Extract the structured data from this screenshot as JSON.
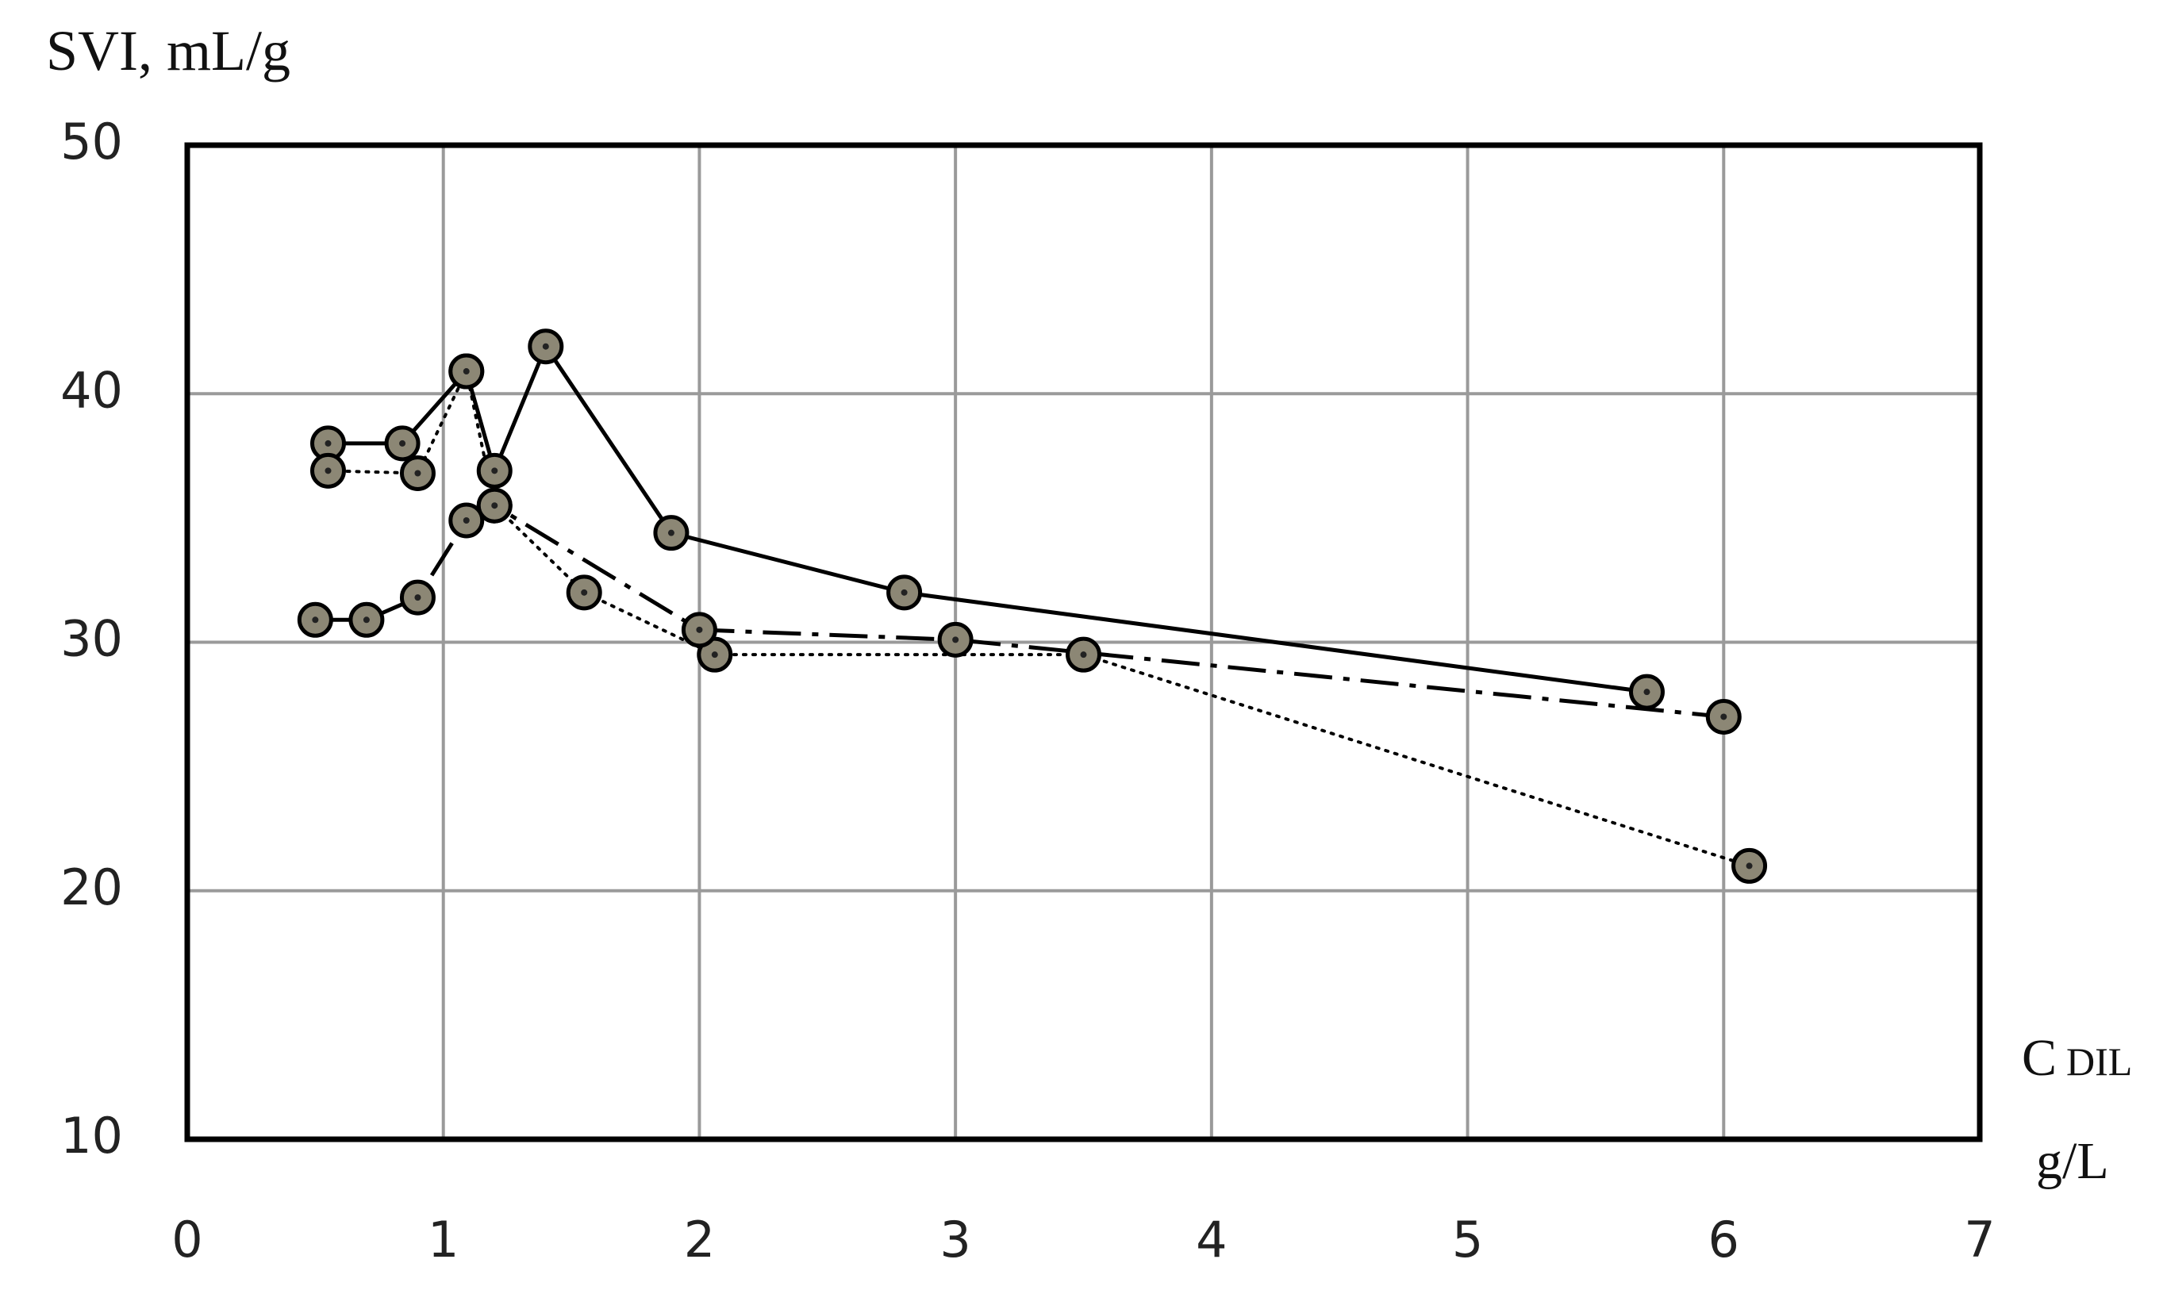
{
  "chart_data": {
    "type": "line",
    "y_label": "SVI, mL/g",
    "x_label": "C",
    "x_label_sub": "DIL",
    "x_unit": "g/L",
    "xlim": [
      0,
      7
    ],
    "xticks": [
      0,
      1,
      2,
      3,
      4,
      5,
      6,
      7
    ],
    "ylim": [
      10,
      50
    ],
    "yticks": [
      10,
      20,
      30,
      40,
      50
    ],
    "grid": true,
    "marker_color": "#8c8775",
    "series": [
      {
        "color": "#000000",
        "style": "solid",
        "x": [
          0.55,
          0.84,
          1.09,
          1.2,
          1.4,
          1.89,
          2.8,
          5.7
        ],
        "values": [
          38,
          38,
          40.9,
          36.9,
          41.9,
          34.4,
          32,
          28
        ]
      },
      {
        "color": "#000000",
        "style": "dotted",
        "x": [
          0.55,
          0.9,
          1.09,
          1.2,
          1.55,
          2.06,
          3.5,
          6.1
        ],
        "values": [
          36.9,
          36.8,
          40.9,
          35.5,
          32,
          29.5,
          29.5,
          21
        ]
      },
      {
        "color": "#000000",
        "style": "dashdot",
        "x": [
          0.5,
          0.7,
          0.9,
          1.09,
          1.2,
          2.0,
          3.0,
          6.0
        ],
        "values": [
          30.9,
          30.9,
          31.8,
          34.9,
          35.5,
          30.5,
          30.1,
          27
        ]
      }
    ]
  }
}
